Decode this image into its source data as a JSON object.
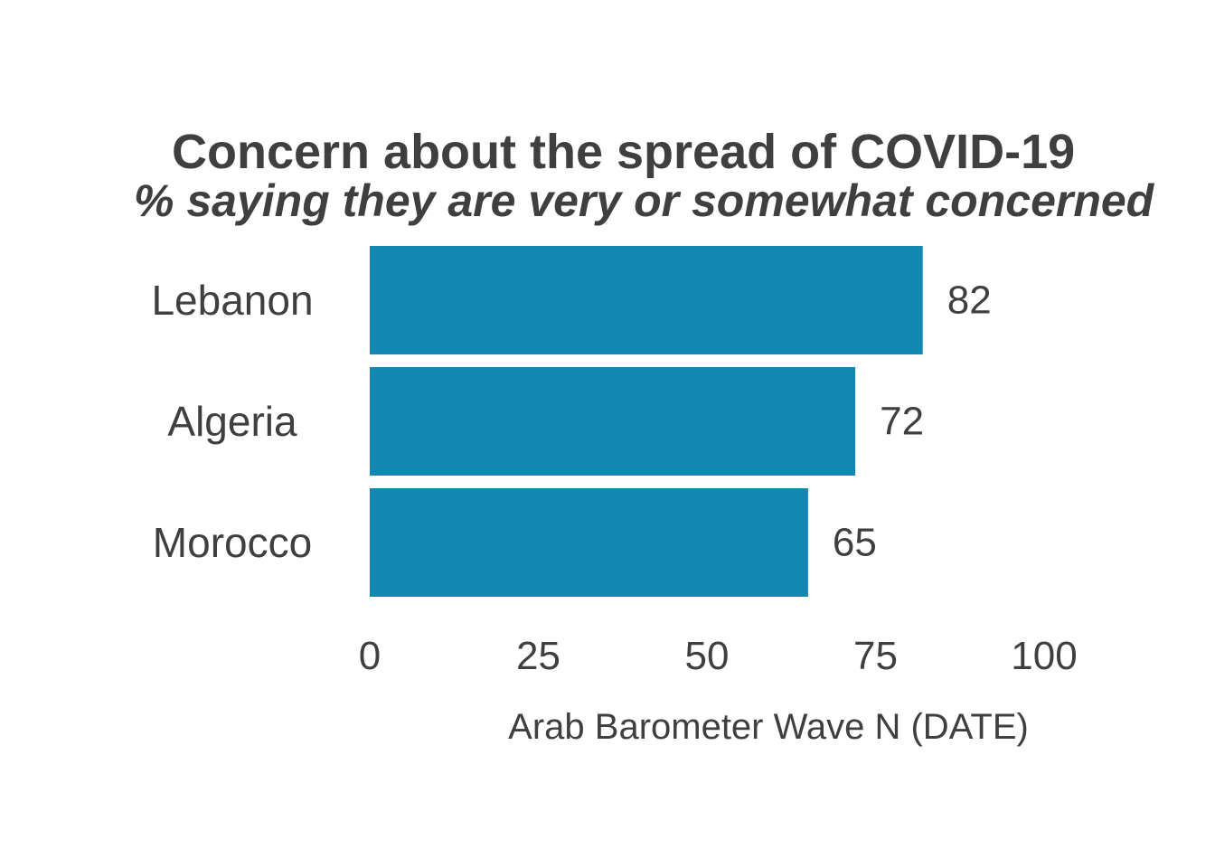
{
  "chart_data": {
    "type": "bar",
    "orientation": "horizontal",
    "title": "Concern about the spread of COVID-19",
    "subtitle": "% saying they are very or somewhat concerned",
    "categories": [
      "Lebanon",
      "Algeria",
      "Morocco"
    ],
    "values": [
      82,
      72,
      65
    ],
    "data_labels": [
      "82",
      "72",
      "65"
    ],
    "xlim": [
      0,
      100
    ],
    "xticks": [
      0,
      25,
      50,
      75,
      100
    ],
    "xtick_labels": [
      "0",
      "25",
      "50",
      "75",
      "100"
    ],
    "xlabel": "Arab Barometer Wave N (DATE)",
    "ylabel": "",
    "grid": false,
    "legend": "none",
    "bar_color": "#1287b1",
    "text_color": "#3f3f3f"
  }
}
